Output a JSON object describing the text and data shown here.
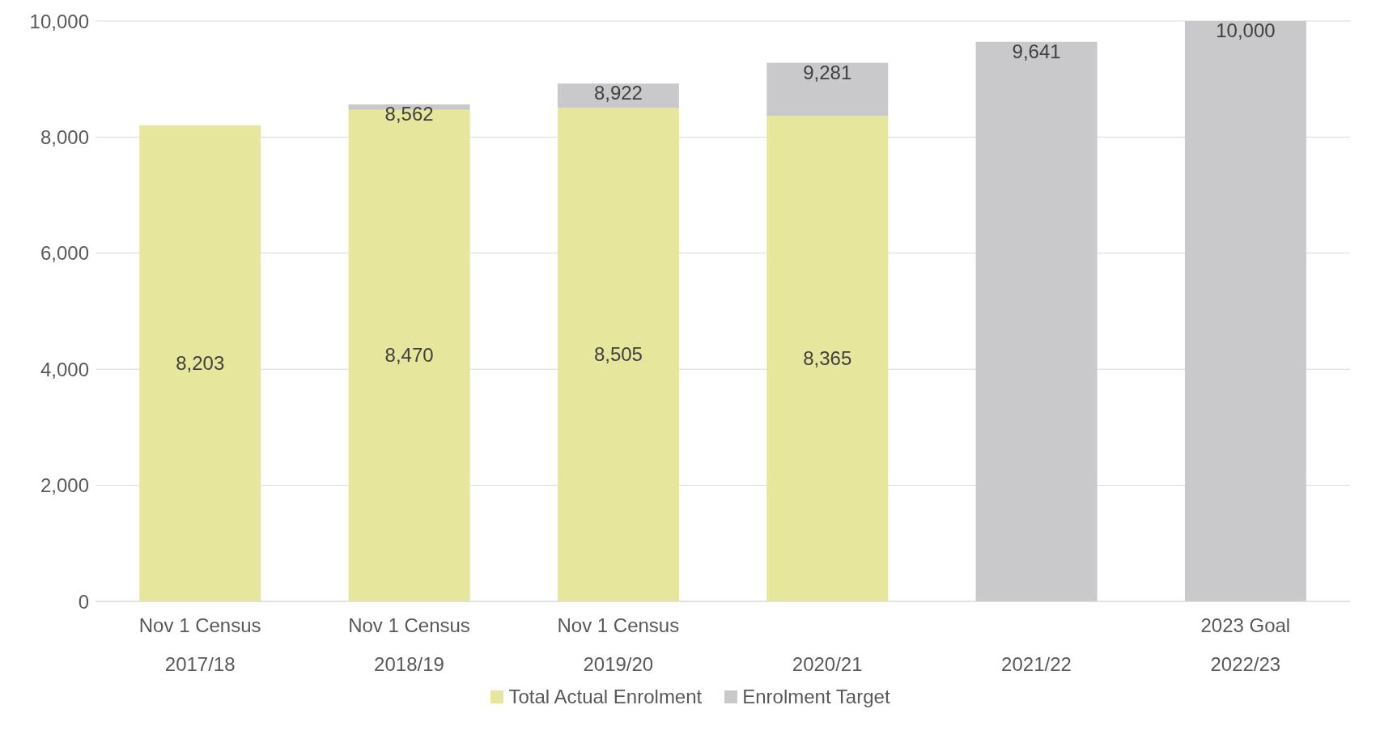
{
  "chart_data": {
    "type": "bar",
    "stacked": true,
    "categories": [
      "Nov 1 Census\n2017/18",
      "Nov 1 Census\n2018/19",
      "Nov 1 Census\n2019/20",
      "2020/21",
      "2021/22",
      "2023 Goal\n2022/23"
    ],
    "series": [
      {
        "name": "Total Actual Enrolment",
        "color": "#e6e69c",
        "values": [
          8203,
          8470,
          8505,
          8365,
          null,
          null
        ],
        "value_labels": [
          "8,203",
          "8,470",
          "8,505",
          "8,365",
          null,
          null
        ]
      },
      {
        "name": "Enrolment Target",
        "color": "#c9c9cb",
        "values": [
          null,
          92,
          417,
          916,
          9641,
          10000
        ]
      }
    ],
    "totals": [
      null,
      "8,562",
      "8,922",
      "9,281",
      "9,641",
      "10,000"
    ],
    "ylim": [
      0,
      10000
    ],
    "yticks": [
      0,
      {
        "value": 2000,
        "label": "2,000"
      },
      {
        "value": 4000,
        "label": "4,000"
      },
      {
        "value": 6000,
        "label": "6,000"
      },
      {
        "value": 8000,
        "label": "8,000"
      },
      {
        "value": 10000,
        "label": "10,000"
      }
    ],
    "grid": "y",
    "legend": "bottom"
  }
}
